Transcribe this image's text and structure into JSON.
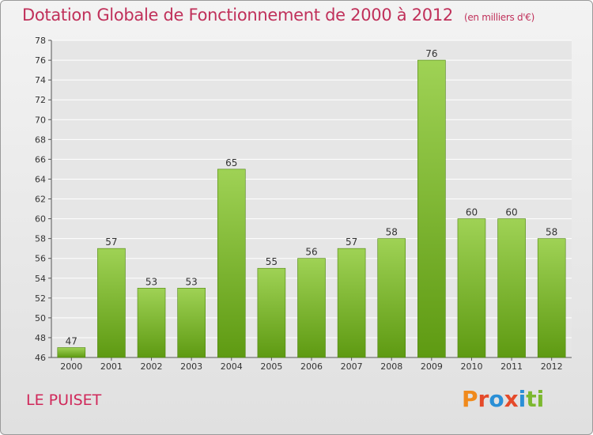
{
  "header": {
    "title": "Dotation Globale de Fonctionnement de 2000 à 2012",
    "subtitle": "(en milliers d'€)"
  },
  "commune": "LE PUISET",
  "logo": {
    "letters": [
      "P",
      "r",
      "o",
      "x",
      "i",
      "t",
      "i"
    ]
  },
  "colors": {
    "bar_light": "#9fd255",
    "bar_dark": "#5e9a12",
    "title": "#c0305a",
    "grid": "#ffffff"
  },
  "chart_data": {
    "type": "bar",
    "title": "Dotation Globale de Fonctionnement de 2000 à 2012",
    "xlabel": "",
    "ylabel": "",
    "categories": [
      "2000",
      "2001",
      "2002",
      "2003",
      "2004",
      "2005",
      "2006",
      "2007",
      "2008",
      "2009",
      "2010",
      "2011",
      "2012"
    ],
    "values": [
      47,
      57,
      53,
      53,
      65,
      55,
      56,
      57,
      58,
      76,
      60,
      60,
      58
    ],
    "ylim": [
      46,
      78
    ],
    "yticks": [
      46,
      48,
      50,
      52,
      54,
      56,
      58,
      60,
      62,
      64,
      66,
      68,
      70,
      72,
      74,
      76,
      78
    ],
    "grid": true
  }
}
